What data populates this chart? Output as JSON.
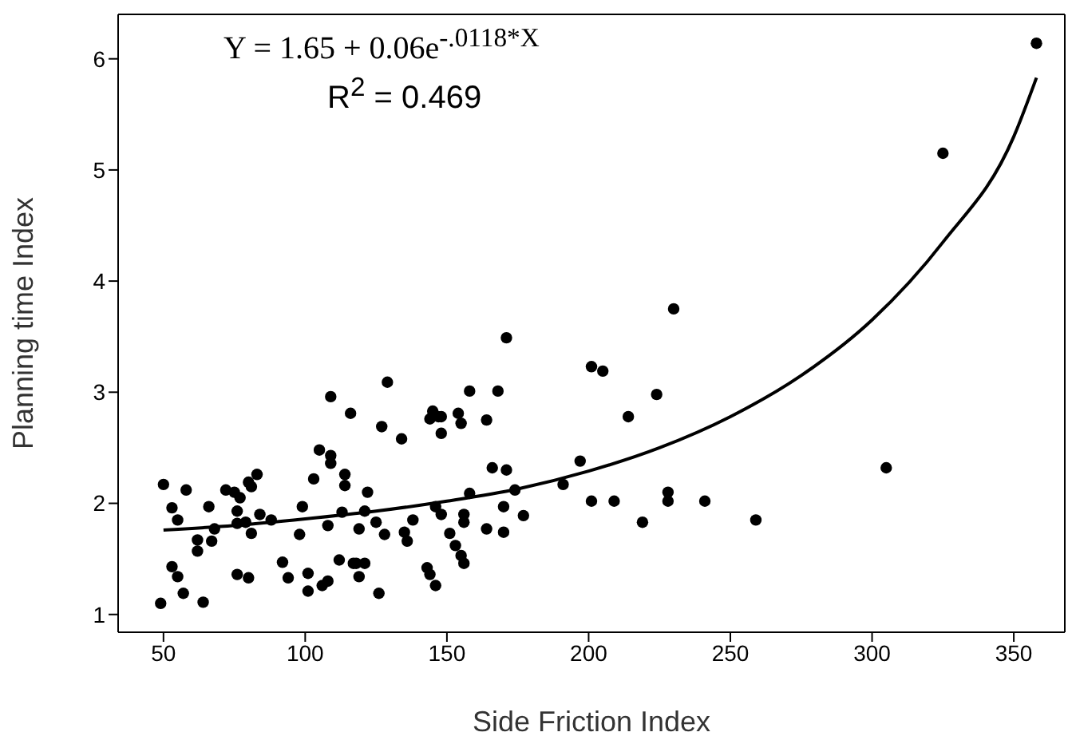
{
  "chart_data": {
    "type": "scatter",
    "xlabel": "Side Friction Index",
    "ylabel": "Planning time Index",
    "annotations": [
      "Y = 1.65 + 0.06e$^{-.0118*X}$",
      "R$^{2}$ = 0.469"
    ],
    "xlim": [
      34,
      368
    ],
    "xticks": [
      50,
      100,
      150,
      200,
      250,
      300,
      350
    ],
    "ylim": [
      0.84,
      6.4
    ],
    "yticks": [
      1,
      2,
      3,
      4,
      5,
      6
    ],
    "legend": false,
    "marker": "circle",
    "series": [
      {
        "color": "#000000",
        "x": [
          50,
          53,
          55,
          58,
          49,
          53,
          55,
          57,
          64,
          62,
          62,
          66,
          67,
          68,
          72,
          75,
          77,
          80,
          83,
          81,
          76,
          76,
          79,
          81,
          84,
          88,
          76,
          80,
          92,
          94,
          99,
          98,
          101,
          101,
          106,
          108,
          109,
          116,
          105,
          109,
          109,
          103,
          114,
          114,
          108,
          113,
          112,
          117,
          129,
          127,
          134,
          145,
          144,
          147,
          148,
          148,
          154,
          155,
          158,
          164,
          168,
          171,
          166,
          171,
          158,
          174,
          191,
          197,
          122,
          121,
          119,
          125,
          128,
          135,
          136,
          138,
          146,
          148,
          156,
          156,
          164,
          170,
          170,
          177,
          151,
          153,
          155,
          156,
          143,
          144,
          146,
          126,
          119,
          121,
          118,
          358,
          325,
          230,
          201,
          205,
          224,
          214,
          305,
          201,
          209,
          228,
          228,
          241,
          219,
          259
        ],
        "values": [
          2.17,
          1.96,
          1.85,
          2.12,
          1.1,
          1.43,
          1.34,
          1.19,
          1.11,
          1.67,
          1.57,
          1.97,
          1.66,
          1.77,
          2.12,
          2.1,
          2.05,
          2.19,
          2.26,
          2.15,
          1.93,
          1.82,
          1.83,
          1.73,
          1.9,
          1.85,
          1.36,
          1.33,
          1.47,
          1.33,
          1.97,
          1.72,
          1.37,
          1.21,
          1.26,
          1.3,
          2.96,
          2.81,
          2.48,
          2.43,
          2.36,
          2.22,
          2.26,
          2.16,
          1.8,
          1.92,
          1.49,
          1.46,
          3.09,
          2.69,
          2.58,
          2.83,
          2.76,
          2.78,
          2.78,
          2.63,
          2.81,
          2.72,
          3.01,
          2.75,
          3.01,
          3.49,
          2.32,
          2.3,
          2.09,
          2.12,
          2.17,
          2.38,
          2.1,
          1.93,
          1.77,
          1.83,
          1.72,
          1.74,
          1.66,
          1.85,
          1.97,
          1.9,
          1.9,
          1.83,
          1.77,
          1.97,
          1.74,
          1.89,
          1.73,
          1.62,
          1.53,
          1.46,
          1.42,
          1.36,
          1.26,
          1.19,
          1.34,
          1.46,
          1.46,
          6.14,
          5.15,
          3.75,
          3.23,
          3.19,
          2.98,
          2.78,
          2.32,
          2.02,
          2.02,
          2.1,
          2.02,
          2.02,
          1.83,
          1.85
        ]
      },
      {
        "type": "line",
        "color": "#000000",
        "marker": "none",
        "line_style": "solid",
        "x": [
          50,
          75,
          100,
          125,
          150,
          175,
          200,
          225,
          250,
          275,
          300,
          325,
          350,
          358
        ],
        "values": [
          1.76,
          1.8,
          1.86,
          1.93,
          2.02,
          2.13,
          2.29,
          2.5,
          2.78,
          3.15,
          3.65,
          4.35,
          5.3,
          5.83
        ]
      }
    ]
  }
}
